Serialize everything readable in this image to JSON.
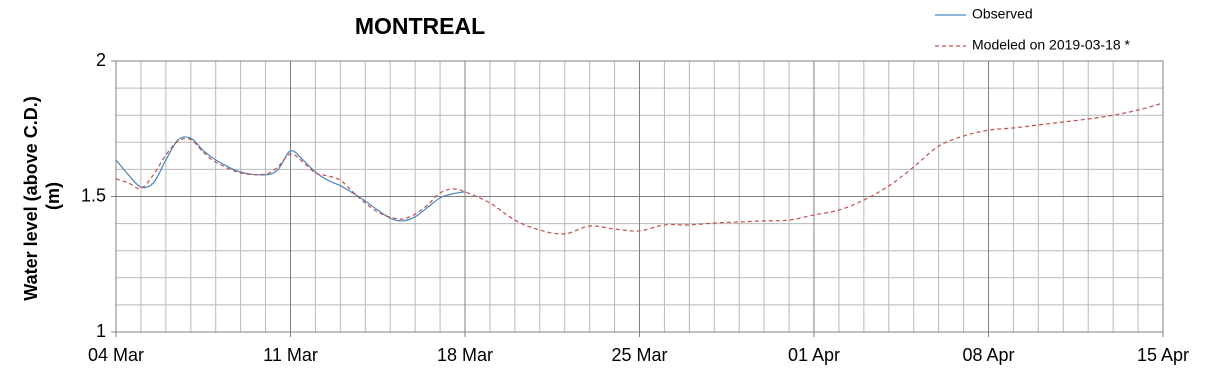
{
  "chart_data": {
    "type": "line",
    "title": "MONTREAL",
    "ylabel": [
      "Water level (above C.D.)",
      "(m)"
    ],
    "xlim": [
      0,
      42
    ],
    "ylim": [
      1,
      2
    ],
    "xticks": [
      {
        "value": 0,
        "label": "04 Mar"
      },
      {
        "value": 7,
        "label": "11 Mar"
      },
      {
        "value": 14,
        "label": "18 Mar"
      },
      {
        "value": 21,
        "label": "25 Mar"
      },
      {
        "value": 28,
        "label": "01 Apr"
      },
      {
        "value": 35,
        "label": "08 Apr"
      },
      {
        "value": 42,
        "label": "15 Apr"
      }
    ],
    "yticks": [
      1,
      1.5,
      2
    ],
    "minor_xticks": [
      1,
      2,
      3,
      4,
      5,
      6,
      8,
      9,
      10,
      11,
      12,
      13,
      15,
      16,
      17,
      18,
      19,
      20,
      22,
      23,
      24,
      25,
      26,
      27,
      29,
      30,
      31,
      32,
      33,
      34,
      36,
      37,
      38,
      39,
      40,
      41
    ],
    "minor_yticks": [
      1.1,
      1.2,
      1.3,
      1.4,
      1.6,
      1.7,
      1.8,
      1.9
    ],
    "grid": true,
    "legend": "top-right",
    "series": [
      {
        "name": "Observed",
        "color": "#4a86c0",
        "dash": false,
        "x": [
          0,
          0.5,
          1,
          1.5,
          2,
          2.5,
          3,
          3.5,
          4,
          5,
          6,
          6.5,
          7,
          7.5,
          8,
          8.5,
          9,
          9.5,
          10,
          10.5,
          11,
          11.5,
          12,
          12.5,
          13,
          13.5,
          14
        ],
        "values": [
          1.635,
          1.58,
          1.535,
          1.55,
          1.635,
          1.71,
          1.715,
          1.67,
          1.635,
          1.59,
          1.58,
          1.6,
          1.668,
          1.635,
          1.59,
          1.56,
          1.54,
          1.513,
          1.483,
          1.45,
          1.42,
          1.41,
          1.425,
          1.46,
          1.495,
          1.51,
          1.517
        ]
      },
      {
        "name": "Modeled on 2019-03-18 *",
        "color": "#c0504d",
        "dash": true,
        "x": [
          0,
          0.5,
          1,
          1.5,
          2,
          2.5,
          3,
          3.5,
          4,
          5,
          6,
          6.5,
          7,
          7.5,
          8,
          8.5,
          9,
          9.5,
          10,
          10.5,
          11,
          11.5,
          12,
          12.5,
          13,
          13.5,
          14,
          15,
          16,
          17,
          18,
          19,
          20,
          21,
          22,
          23,
          24,
          25,
          26,
          27,
          28,
          29,
          30,
          31,
          32,
          33,
          34,
          35,
          36,
          37,
          38,
          39,
          40,
          41,
          42
        ],
        "values": [
          1.565,
          1.55,
          1.53,
          1.58,
          1.653,
          1.705,
          1.71,
          1.664,
          1.627,
          1.587,
          1.583,
          1.61,
          1.657,
          1.627,
          1.587,
          1.576,
          1.56,
          1.517,
          1.476,
          1.443,
          1.424,
          1.417,
          1.435,
          1.469,
          1.513,
          1.528,
          1.517,
          1.476,
          1.413,
          1.376,
          1.362,
          1.391,
          1.38,
          1.373,
          1.395,
          1.395,
          1.402,
          1.406,
          1.41,
          1.413,
          1.432,
          1.45,
          1.487,
          1.539,
          1.609,
          1.686,
          1.723,
          1.745,
          1.753,
          1.764,
          1.775,
          1.786,
          1.8,
          1.819,
          1.845
        ]
      }
    ]
  }
}
